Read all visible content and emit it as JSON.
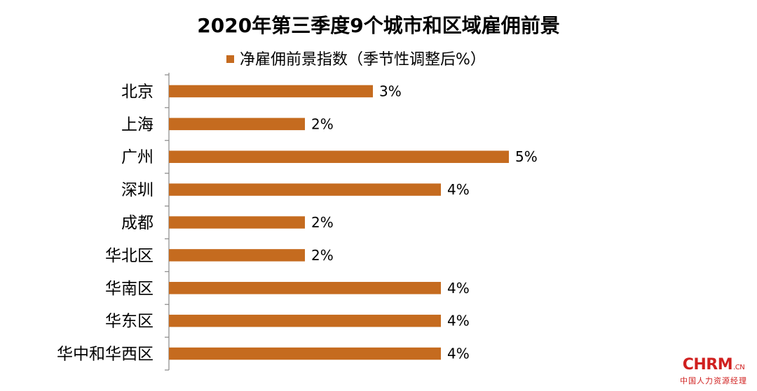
{
  "chart_data": {
    "type": "bar",
    "orientation": "horizontal",
    "title": "2020年第三季度9个城市和区域雇佣前景",
    "categories": [
      "北京",
      "上海",
      "广州",
      "深圳",
      "成都",
      "华北区",
      "华南区",
      "华东区",
      "华中和华西区"
    ],
    "series": [
      {
        "name": "净雇佣前景指数（季节性调整后%）",
        "values": [
          3,
          2,
          5,
          4,
          2,
          2,
          4,
          4,
          4
        ],
        "value_labels": [
          "3%",
          "2%",
          "5%",
          "4%",
          "2%",
          "2%",
          "4%",
          "4%",
          "4%"
        ],
        "color": "#c56b1f"
      }
    ],
    "xlim": [
      0,
      5
    ],
    "legend_position": "top",
    "grid": false
  },
  "watermark": {
    "brand": "CHRM",
    "suffix": ".CN",
    "tagline": "中国人力资源经理"
  }
}
